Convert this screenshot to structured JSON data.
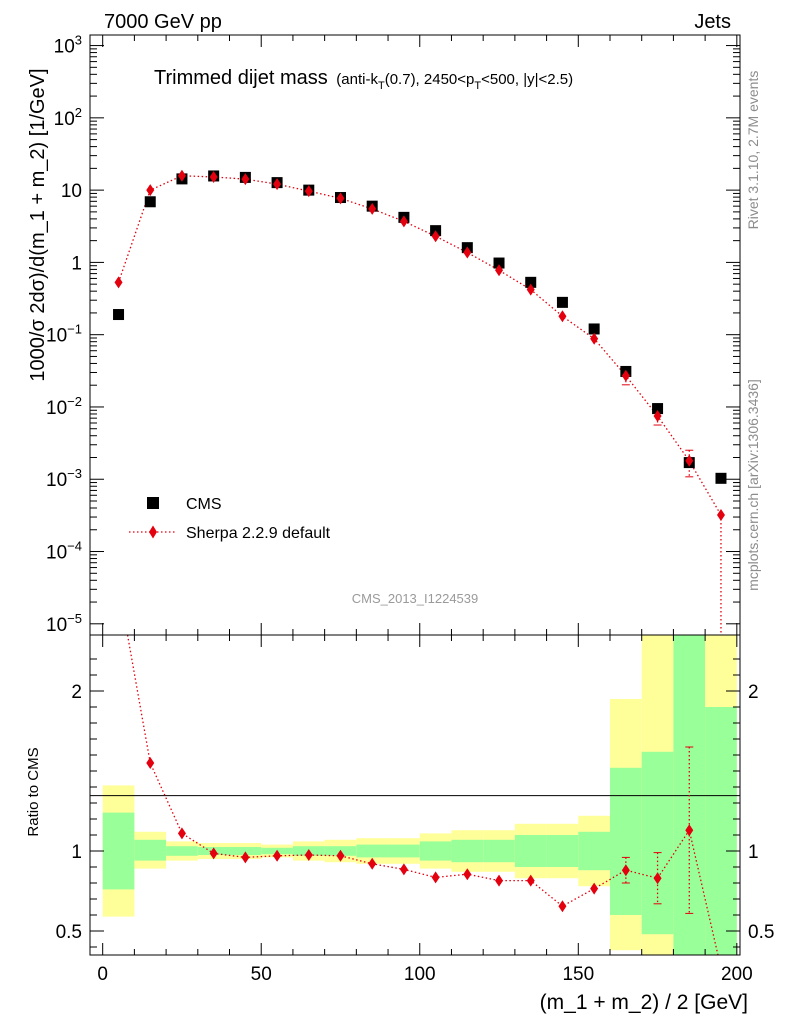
{
  "header": {
    "left": "7000 GeV pp",
    "right": "Jets"
  },
  "side_labels": {
    "rivet": "Rivet 3.1.10,  2.7M events",
    "mcplots": "mcplots.cern.ch [arXiv:1306.3436]"
  },
  "chart_data": {
    "type": "scatter",
    "title": "Trimmed dijet mass",
    "subtitle": "(anti-kT(0.7), 2450<pT<500, |y|<2.5)",
    "watermark": "CMS_2013_I1224539",
    "xlabel": "(m_1 + m_2) / 2 [GeV]",
    "ylabel": "1000/σ 2dσ)/d(m_1 + m_2) [1/GeV]",
    "ratio_ylabel": "Ratio to CMS",
    "xlim": [
      -4,
      201
    ],
    "ylim": [
      7e-06,
      1400
    ],
    "yscale": "log",
    "ratio_ylim": [
      0.35,
      2.35
    ],
    "x_ticks": [
      0,
      50,
      100,
      150,
      200
    ],
    "y_ticks": [
      {
        "value": 1e-05,
        "base": "10",
        "exp": "−5"
      },
      {
        "value": 0.0001,
        "base": "10",
        "exp": "−4"
      },
      {
        "value": 0.001,
        "base": "10",
        "exp": "−3"
      },
      {
        "value": 0.01,
        "base": "10",
        "exp": "−2"
      },
      {
        "value": 0.1,
        "base": "10",
        "exp": "−1"
      },
      {
        "value": 1,
        "base": "1",
        "exp": ""
      },
      {
        "value": 10,
        "base": "10",
        "exp": ""
      },
      {
        "value": 100,
        "base": "10",
        "exp": "2"
      },
      {
        "value": 1000,
        "base": "10",
        "exp": "3"
      }
    ],
    "ratio_ticks": [
      {
        "value": 0.5,
        "label": "0.5"
      },
      {
        "value": 1,
        "label": "1"
      },
      {
        "value": 2,
        "label": "2"
      }
    ],
    "legend": {
      "position": "lower-left"
    },
    "bins": [
      {
        "lo": 0,
        "hi": 10,
        "x": 5,
        "cms": 0.19,
        "sherpa": 0.53,
        "sherpa_err": 0,
        "ratio": 2.8,
        "ratio_err": 0,
        "stat": [
          0.76,
          1.24
        ],
        "total": [
          0.59,
          1.41
        ]
      },
      {
        "lo": 10,
        "hi": 20,
        "x": 15,
        "cms": 6.9,
        "sherpa": 10.0,
        "sherpa_err": 0,
        "ratio": 1.55,
        "ratio_err": 0,
        "stat": [
          0.94,
          1.07
        ],
        "total": [
          0.89,
          1.12
        ]
      },
      {
        "lo": 20,
        "hi": 30,
        "x": 25,
        "cms": 14.3,
        "sherpa": 15.8,
        "sherpa_err": 0,
        "ratio": 1.11,
        "ratio_err": 0,
        "stat": [
          0.97,
          1.03
        ],
        "total": [
          0.94,
          1.06
        ]
      },
      {
        "lo": 30,
        "hi": 40,
        "x": 35,
        "cms": 15.7,
        "sherpa": 15.2,
        "sherpa_err": 0,
        "ratio": 0.985,
        "ratio_err": 0,
        "stat": [
          0.975,
          1.025
        ],
        "total": [
          0.95,
          1.05
        ]
      },
      {
        "lo": 40,
        "hi": 50,
        "x": 45,
        "cms": 15.0,
        "sherpa": 14.2,
        "sherpa_err": 0,
        "ratio": 0.96,
        "ratio_err": 0,
        "stat": [
          0.975,
          1.025
        ],
        "total": [
          0.95,
          1.05
        ]
      },
      {
        "lo": 50,
        "hi": 60,
        "x": 55,
        "cms": 12.7,
        "sherpa": 12.1,
        "sherpa_err": 0,
        "ratio": 0.97,
        "ratio_err": 0,
        "stat": [
          0.98,
          1.02
        ],
        "total": [
          0.96,
          1.04
        ]
      },
      {
        "lo": 60,
        "hi": 70,
        "x": 65,
        "cms": 10.0,
        "sherpa": 9.7,
        "sherpa_err": 0,
        "ratio": 0.975,
        "ratio_err": 0,
        "stat": [
          0.97,
          1.03
        ],
        "total": [
          0.94,
          1.06
        ]
      },
      {
        "lo": 70,
        "hi": 80,
        "x": 75,
        "cms": 7.9,
        "sherpa": 7.7,
        "sherpa_err": 0,
        "ratio": 0.97,
        "ratio_err": 0,
        "stat": [
          0.97,
          1.03
        ],
        "total": [
          0.93,
          1.07
        ]
      },
      {
        "lo": 80,
        "hi": 90,
        "x": 85,
        "cms": 6.0,
        "sherpa": 5.5,
        "sherpa_err": 0,
        "ratio": 0.92,
        "ratio_err": 0,
        "stat": [
          0.96,
          1.04
        ],
        "total": [
          0.92,
          1.08
        ]
      },
      {
        "lo": 90,
        "hi": 100,
        "x": 95,
        "cms": 4.2,
        "sherpa": 3.7,
        "sherpa_err": 0,
        "ratio": 0.885,
        "ratio_err": 0,
        "stat": [
          0.96,
          1.04
        ],
        "total": [
          0.92,
          1.08
        ]
      },
      {
        "lo": 100,
        "hi": 110,
        "x": 105,
        "cms": 2.75,
        "sherpa": 2.3,
        "sherpa_err": 0,
        "ratio": 0.835,
        "ratio_err": 0,
        "stat": [
          0.94,
          1.06
        ],
        "total": [
          0.89,
          1.11
        ]
      },
      {
        "lo": 110,
        "hi": 120,
        "x": 115,
        "cms": 1.6,
        "sherpa": 1.37,
        "sherpa_err": 0,
        "ratio": 0.855,
        "ratio_err": 0,
        "stat": [
          0.93,
          1.07
        ],
        "total": [
          0.87,
          1.13
        ]
      },
      {
        "lo": 120,
        "hi": 130,
        "x": 125,
        "cms": 0.98,
        "sherpa": 0.78,
        "sherpa_err": 0,
        "ratio": 0.815,
        "ratio_err": 0,
        "stat": [
          0.93,
          1.07
        ],
        "total": [
          0.87,
          1.13
        ]
      },
      {
        "lo": 130,
        "hi": 140,
        "x": 135,
        "cms": 0.53,
        "sherpa": 0.42,
        "sherpa_err": 0,
        "ratio": 0.815,
        "ratio_err": 0,
        "stat": [
          0.9,
          1.1
        ],
        "total": [
          0.83,
          1.17
        ]
      },
      {
        "lo": 140,
        "hi": 150,
        "x": 145,
        "cms": 0.28,
        "sherpa": 0.18,
        "sherpa_err": 0,
        "ratio": 0.655,
        "ratio_err": 0,
        "stat": [
          0.9,
          1.1
        ],
        "total": [
          0.83,
          1.17
        ]
      },
      {
        "lo": 150,
        "hi": 160,
        "x": 155,
        "cms": 0.12,
        "sherpa": 0.088,
        "sherpa_err": 0,
        "ratio": 0.765,
        "ratio_err": 0,
        "stat": [
          0.88,
          1.12
        ],
        "total": [
          0.78,
          1.22
        ]
      },
      {
        "lo": 160,
        "hi": 170,
        "x": 165,
        "cms": 0.031,
        "sherpa": 0.027,
        "sherpa_err": 0.25,
        "ratio": 0.88,
        "ratio_err": 0.08,
        "stat": [
          0.6,
          1.52
        ],
        "total": [
          0.38,
          1.95
        ]
      },
      {
        "lo": 170,
        "hi": 180,
        "x": 175,
        "cms": 0.0095,
        "sherpa": 0.0075,
        "sherpa_err": 0.25,
        "ratio": 0.83,
        "ratio_err": 0.16,
        "stat": [
          0.48,
          1.62
        ],
        "total": [
          0.35,
          2.35
        ]
      },
      {
        "lo": 180,
        "hi": 190,
        "x": 185,
        "cms": 0.0017,
        "sherpa": 0.0018,
        "sherpa_err": 0.4,
        "ratio": 1.13,
        "ratio_err": 0.52,
        "stat": [
          0.35,
          2.35
        ],
        "total": [
          0.35,
          2.35
        ]
      },
      {
        "lo": 190,
        "hi": 200,
        "x": 195,
        "cms": 0.00103,
        "sherpa": 0.00032,
        "sherpa_err": 3.0,
        "ratio": 0.3,
        "ratio_err": 0,
        "stat": [
          0.35,
          1.9
        ],
        "total": [
          0.35,
          2.35
        ]
      }
    ],
    "series": [
      {
        "name": "CMS",
        "color": "#000000",
        "marker": "square"
      },
      {
        "name": "Sherpa 2.2.9 default",
        "color": "#e3000f",
        "marker": "diamond",
        "line": "dotted"
      }
    ],
    "band_colors": {
      "stat": "#99ff99",
      "total": "#ffff99"
    }
  }
}
